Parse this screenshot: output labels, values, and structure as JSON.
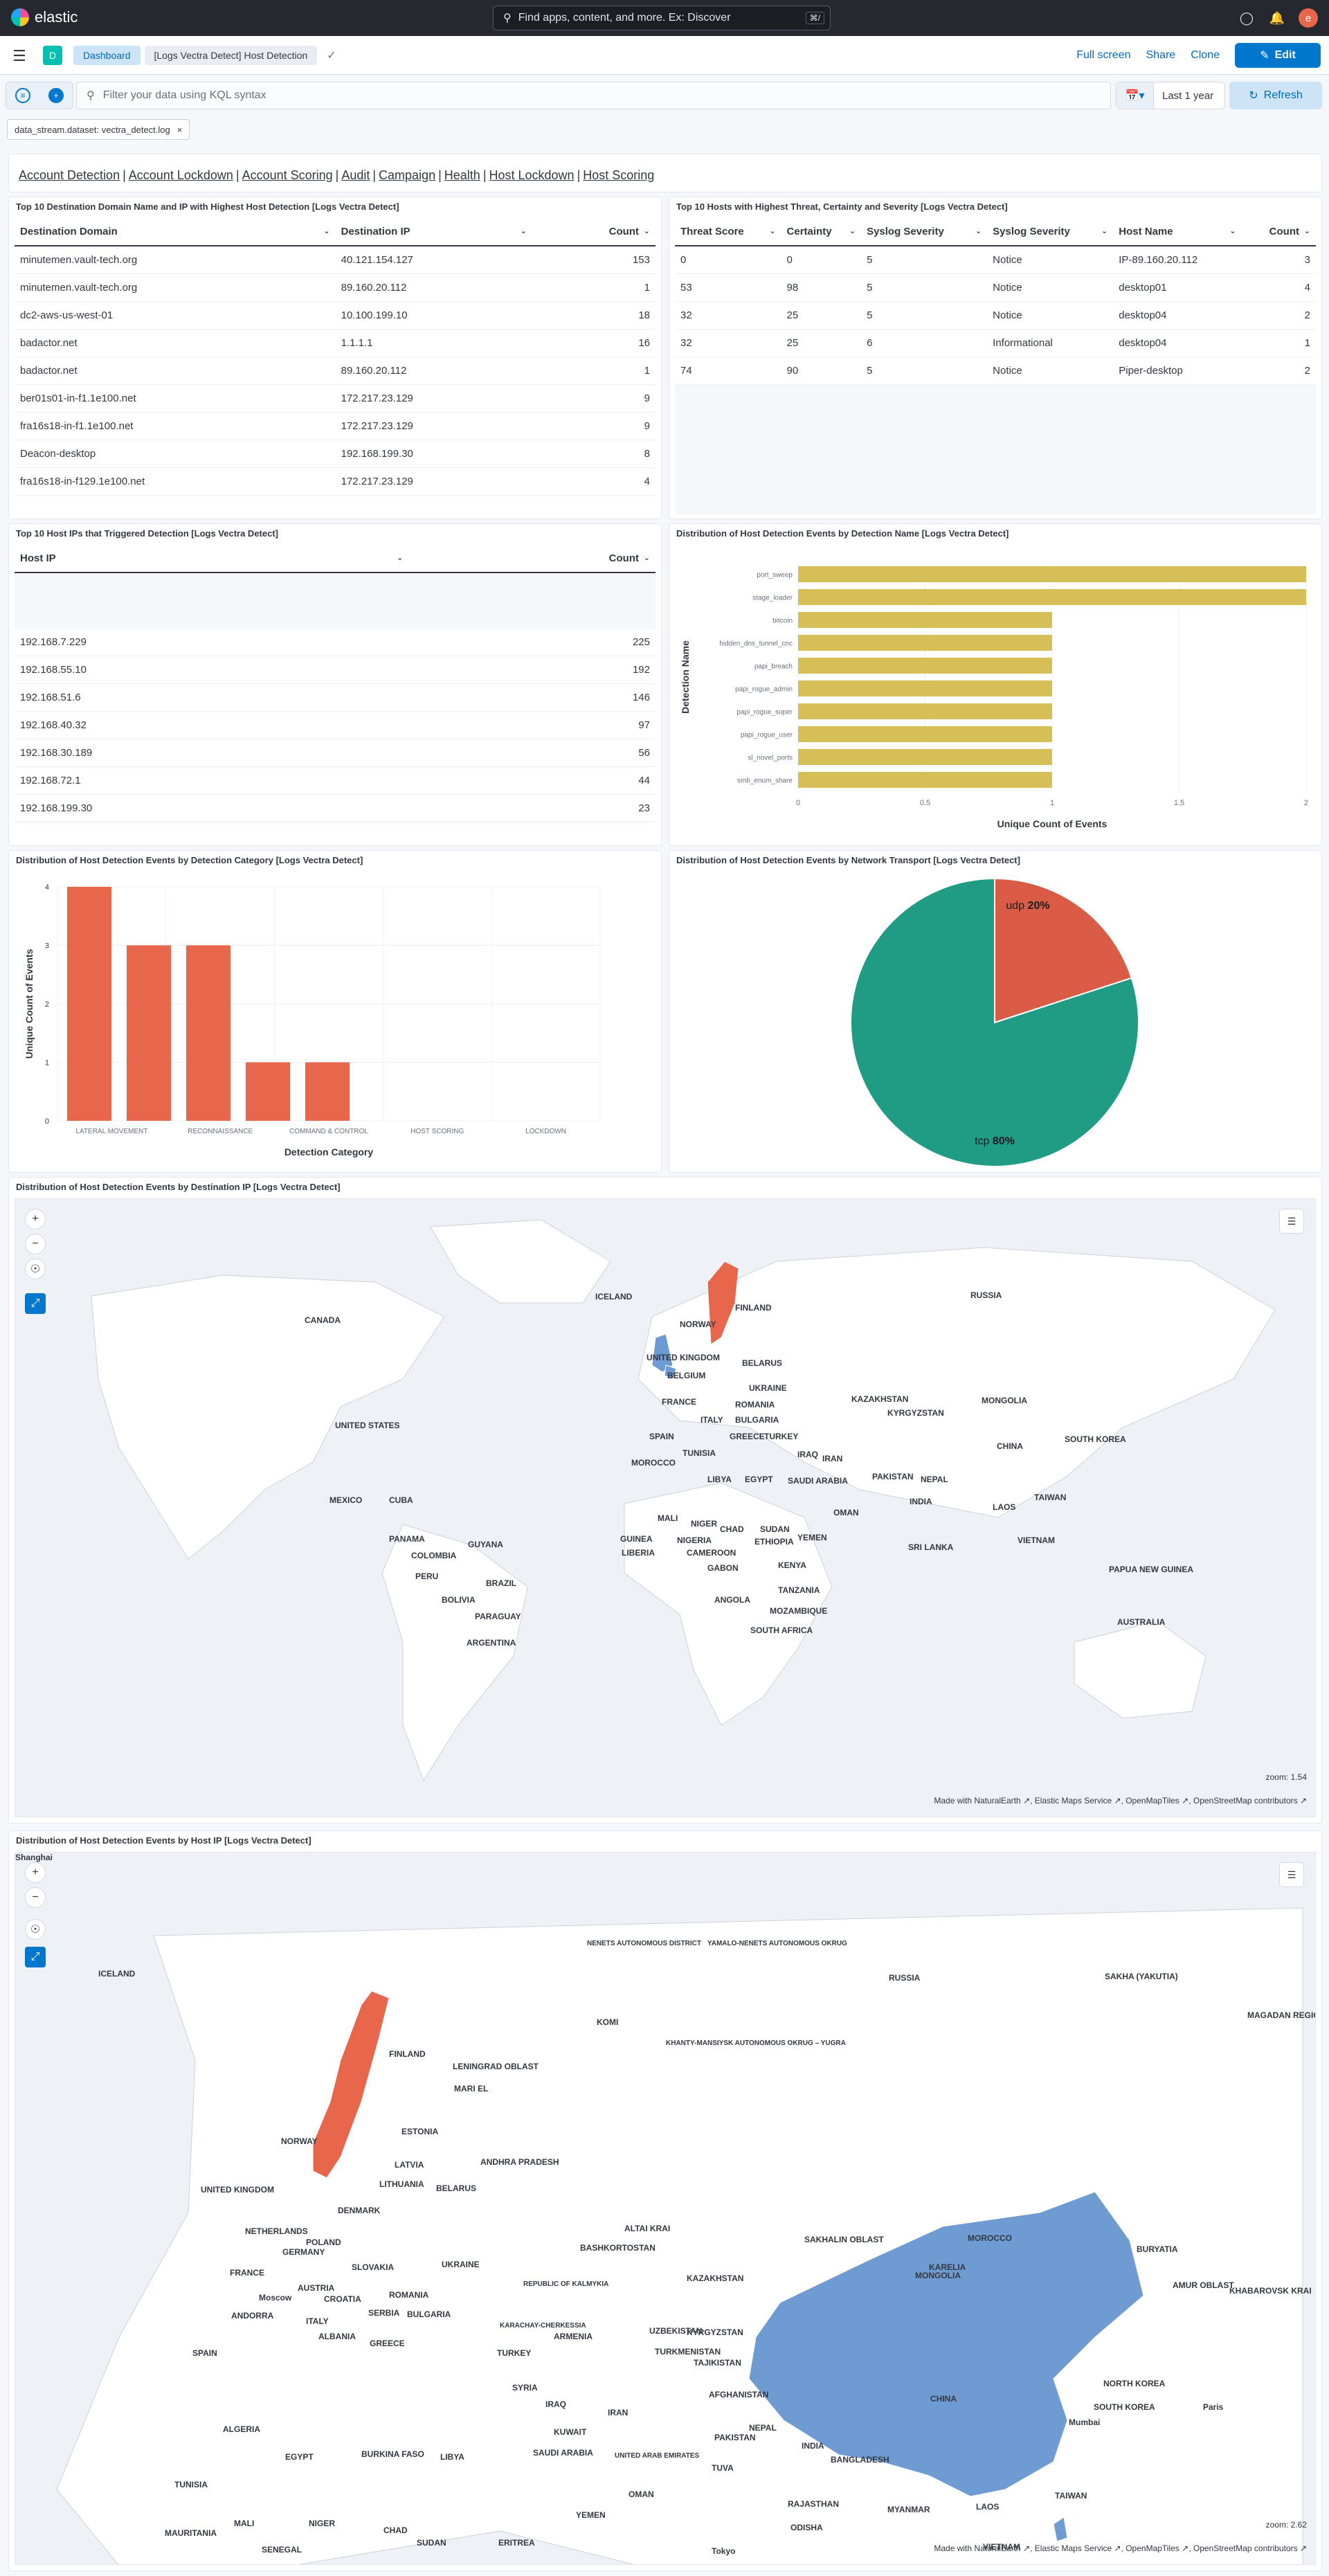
{
  "header": {
    "brand": "elastic",
    "search_placeholder": "Find apps, content, and more. Ex: Discover",
    "shortcut": "⌘/",
    "avatar": "e"
  },
  "nav": {
    "space_letter": "D",
    "breadcrumb_1": "Dashboard",
    "breadcrumb_2": "[Logs Vectra Detect] Host Detection",
    "actions": {
      "fullscreen": "Full screen",
      "share": "Share",
      "clone": "Clone",
      "edit": "Edit"
    }
  },
  "query": {
    "placeholder": "Filter your data using KQL syntax",
    "time": "Last 1 year",
    "refresh": "Refresh"
  },
  "filters": [
    {
      "label": "data_stream.dataset: vectra_detect.log"
    }
  ],
  "links": [
    "Account Detection",
    "Account Lockdown",
    "Account Scoring",
    "Audit",
    "Campaign",
    "Health",
    "Host Lockdown",
    "Host Scoring"
  ],
  "panel1": {
    "title": "Top 10 Destination Domain Name and IP with Highest Host Detection [Logs Vectra Detect]",
    "columns": [
      "Destination Domain",
      "Destination IP",
      "Count"
    ],
    "rows": [
      [
        "minutemen.vault-tech.org",
        "40.121.154.127",
        "153"
      ],
      [
        "minutemen.vault-tech.org",
        "89.160.20.112",
        "1"
      ],
      [
        "dc2-aws-us-west-01",
        "10.100.199.10",
        "18"
      ],
      [
        "badactor.net",
        "1.1.1.1",
        "16"
      ],
      [
        "badactor.net",
        "89.160.20.112",
        "1"
      ],
      [
        "ber01s01-in-f1.1e100.net",
        "172.217.23.129",
        "9"
      ],
      [
        "fra16s18-in-f1.1e100.net",
        "172.217.23.129",
        "9"
      ],
      [
        "Deacon-desktop",
        "192.168.199.30",
        "8"
      ],
      [
        "fra16s18-in-f129.1e100.net",
        "172.217.23.129",
        "4"
      ]
    ]
  },
  "panel2": {
    "title": "Top 10 Hosts with Highest Threat, Certainty and Severity [Logs Vectra Detect]",
    "columns": [
      "Threat Score",
      "Certainty",
      "Syslog Severity",
      "Syslog Severity",
      "Host Name",
      "Count"
    ],
    "rows": [
      [
        "0",
        "0",
        "5",
        "Notice",
        "IP-89.160.20.112",
        "3"
      ],
      [
        "53",
        "98",
        "5",
        "Notice",
        "desktop01",
        "4"
      ],
      [
        "32",
        "25",
        "5",
        "Notice",
        "desktop04",
        "2"
      ],
      [
        "32",
        "25",
        "6",
        "Informational",
        "desktop04",
        "1"
      ],
      [
        "74",
        "90",
        "5",
        "Notice",
        "Piper-desktop",
        "2"
      ]
    ]
  },
  "panel3": {
    "title": "Top 10 Host IPs that Triggered Detection [Logs Vectra Detect]",
    "columns": [
      "Host IP",
      "Count"
    ],
    "rows": [
      [
        "192.168.7.229",
        "225"
      ],
      [
        "192.168.55.10",
        "192"
      ],
      [
        "192.168.51.6",
        "146"
      ],
      [
        "192.168.40.32",
        "97"
      ],
      [
        "192.168.30.189",
        "56"
      ],
      [
        "192.168.72.1",
        "44"
      ],
      [
        "192.168.199.30",
        "23"
      ]
    ]
  },
  "panel4": {
    "title": "Distribution of Host Detection Events by Detection Name [Logs Vectra Detect]"
  },
  "panel5": {
    "title": "Distribution of Host Detection Events by Detection Category [Logs Vectra Detect]"
  },
  "panel6": {
    "title": "Distribution of Host Detection Events by Network Transport [Logs Vectra Detect]"
  },
  "panel7": {
    "title": "Distribution of Host Detection Events by Destination IP [Logs Vectra Detect]",
    "zoom": "zoom: 1.54",
    "attribution": "Made with NaturalEarth ↗, Elastic Maps Service ↗, OpenMapTiles ↗, OpenStreetMap contributors ↗",
    "labels": [
      "RUSSIA",
      "CANADA",
      "ICELAND",
      "NORWAY",
      "FINLAND",
      "UNITED KINGDOM",
      "BELARUS",
      "UKRAINE",
      "KAZAKHSTAN",
      "MONGOLIA",
      "UNITED STATES",
      "FRANCE",
      "ROMANIA",
      "ITALY",
      "BULGARIA",
      "SPAIN",
      "GREECE",
      "TURKEY",
      "CHINA",
      "SOUTH KOREA",
      "MOROCCO",
      "TUNISIA",
      "IRAQ",
      "IRAN",
      "PAKISTAN",
      "NEPAL",
      "MEXICO",
      "CUBA",
      "LIBYA",
      "EGYPT",
      "SAUDI ARABIA",
      "INDIA",
      "LAOS",
      "TAIWAN",
      "MALI",
      "NIGER",
      "CHAD",
      "SUDAN",
      "OMAN",
      "YEMEN",
      "VIETNAM",
      "PANAMA",
      "GUYANA",
      "GUINEA",
      "LIBERIA",
      "NIGERIA",
      "ETHIOPIA",
      "SRI LANKA",
      "COLOMBIA",
      "CAMEROON",
      "GABON",
      "KENYA",
      "PERU",
      "BRAZIL",
      "TANZANIA",
      "PAPUA NEW GUINEA",
      "BOLIVIA",
      "ANGOLA",
      "PARAGUAY",
      "MOZAMBIQUE",
      "ARGENTINA",
      "SOUTH AFRICA",
      "AUSTRALIA",
      "BELGIUM",
      "KYRGYZSTAN"
    ]
  },
  "panel8": {
    "title": "Distribution of Host Detection Events by Host IP [Logs Vectra Detect]",
    "zoom": "zoom: 2.62",
    "attribution": "Made with NaturalEarth ↗, Elastic Maps Service ↗, OpenMapTiles ↗, OpenStreetMap contributors ↗",
    "labels": [
      "ICELAND",
      "NORWAY",
      "FINLAND",
      "RUSSIA",
      "KOMI",
      "SAKHA (YAKUTIA)",
      "MAGADAN REGION",
      "NENETS AUTONOMOUS DISTRICT",
      "YAMALO-NENETS AUTONOMOUS OKRUG",
      "KHANTY-MANSIYSK AUTONOMOUS OKRUG – YUGRA",
      "ESTONIA",
      "LATVIA",
      "LITHUANIA",
      "UNITED KINGDOM",
      "DENMARK",
      "NETHERLANDS",
      "BELARUS",
      "POLAND",
      "GERMANY",
      "UKRAINE",
      "FRANCE",
      "SLOVAKIA",
      "AUSTRIA",
      "CROATIA",
      "ROMANIA",
      "SERBIA",
      "BULGARIA",
      "ANDORRA",
      "ITALY",
      "ALBANIA",
      "GREECE",
      "SPAIN",
      "TURKEY",
      "REPUBLIC OF KALMYKIA",
      "KARACHAY-CHERKESSIA",
      "ARMENIA",
      "KAZAKHSTAN",
      "UZBEKISTAN",
      "KYRGYZSTAN",
      "TURKMENISTAN",
      "TAJIKISTAN",
      "MONGOLIA",
      "CHINA",
      "SOUTH KOREA",
      "NORTH KOREA",
      "AFGHANISTAN",
      "IRAN",
      "IRAQ",
      "SYRIA",
      "KUWAIT",
      "SAUDI ARABIA",
      "UNITED ARAB EMIRATES",
      "OMAN",
      "PAKISTAN",
      "NEPAL",
      "INDIA",
      "BANGLADESH",
      "MYANMAR",
      "LAOS",
      "TAIWAN",
      "VIETNAM",
      "YEMEN",
      "ERITREA",
      "SUDAN",
      "CHAD",
      "NIGER",
      "MALI",
      "MAURITANIA",
      "SENEGAL",
      "BURKINA FASO",
      "LIBYA",
      "EGYPT",
      "ALGERIA",
      "TUNISIA",
      "MOROCCO",
      "BURYATIA",
      "AMUR OBLAST",
      "KHABAROVSK KRAI",
      "SAKHALIN OBLAST",
      "ALTAI KRAI",
      "BASHKORTOSTAN",
      "MARI EL",
      "LENINGRAD OBLAST",
      "KARELIA",
      "TUVA",
      "RAJASTHAN",
      "ODISHA",
      "ANDHRA PRADESH",
      "Moscow",
      "Paris",
      "Tokyo",
      "Mumbai",
      "Shanghai"
    ]
  },
  "chart_data": [
    {
      "type": "bar",
      "orientation": "horizontal",
      "categories": [
        "port_sweep",
        "stage_loader",
        "bitcoin",
        "hidden_dns_tunnel_cnc",
        "papi_breach",
        "papi_rogue_admin",
        "papi_rogue_super",
        "papi_rogue_user",
        "sl_novel_ports",
        "smb_enum_share"
      ],
      "values": [
        2,
        2,
        1,
        1,
        1,
        1,
        1,
        1,
        1,
        1
      ],
      "xlabel": "Unique Count of Events",
      "ylabel": "Detection Name",
      "xticks": [
        "0",
        "0.5",
        "1",
        "1.5",
        "2"
      ],
      "xlim": [
        0,
        2
      ],
      "color": "#d6bf57"
    },
    {
      "type": "bar",
      "categories": [
        "LATERAL MOVEMENT",
        "RECONNAISSANCE",
        "COMMAND & CONTROL",
        "HOST SCORING",
        "LOCKDOWN"
      ],
      "bars": [
        {
          "value": 4
        },
        {
          "value": 3
        },
        {
          "value": 3
        },
        {
          "value": 1
        },
        {
          "value": 1
        }
      ],
      "xlabel": "Detection Category",
      "ylabel": "Unique Count of Events",
      "ylim": [
        0,
        4
      ],
      "yticks": [
        "0",
        "1",
        "2",
        "3",
        "4"
      ],
      "color": "#e7664c"
    },
    {
      "type": "pie",
      "slices": [
        {
          "label": "udp",
          "pct": "20%",
          "value": 20,
          "color": "#da5c46"
        },
        {
          "label": "tcp",
          "pct": "80%",
          "value": 80,
          "color": "#209c85"
        }
      ]
    }
  ],
  "colors": {
    "accent": "#0077cc",
    "map_blue": "#6e9bd1",
    "map_red": "#e7664c"
  }
}
